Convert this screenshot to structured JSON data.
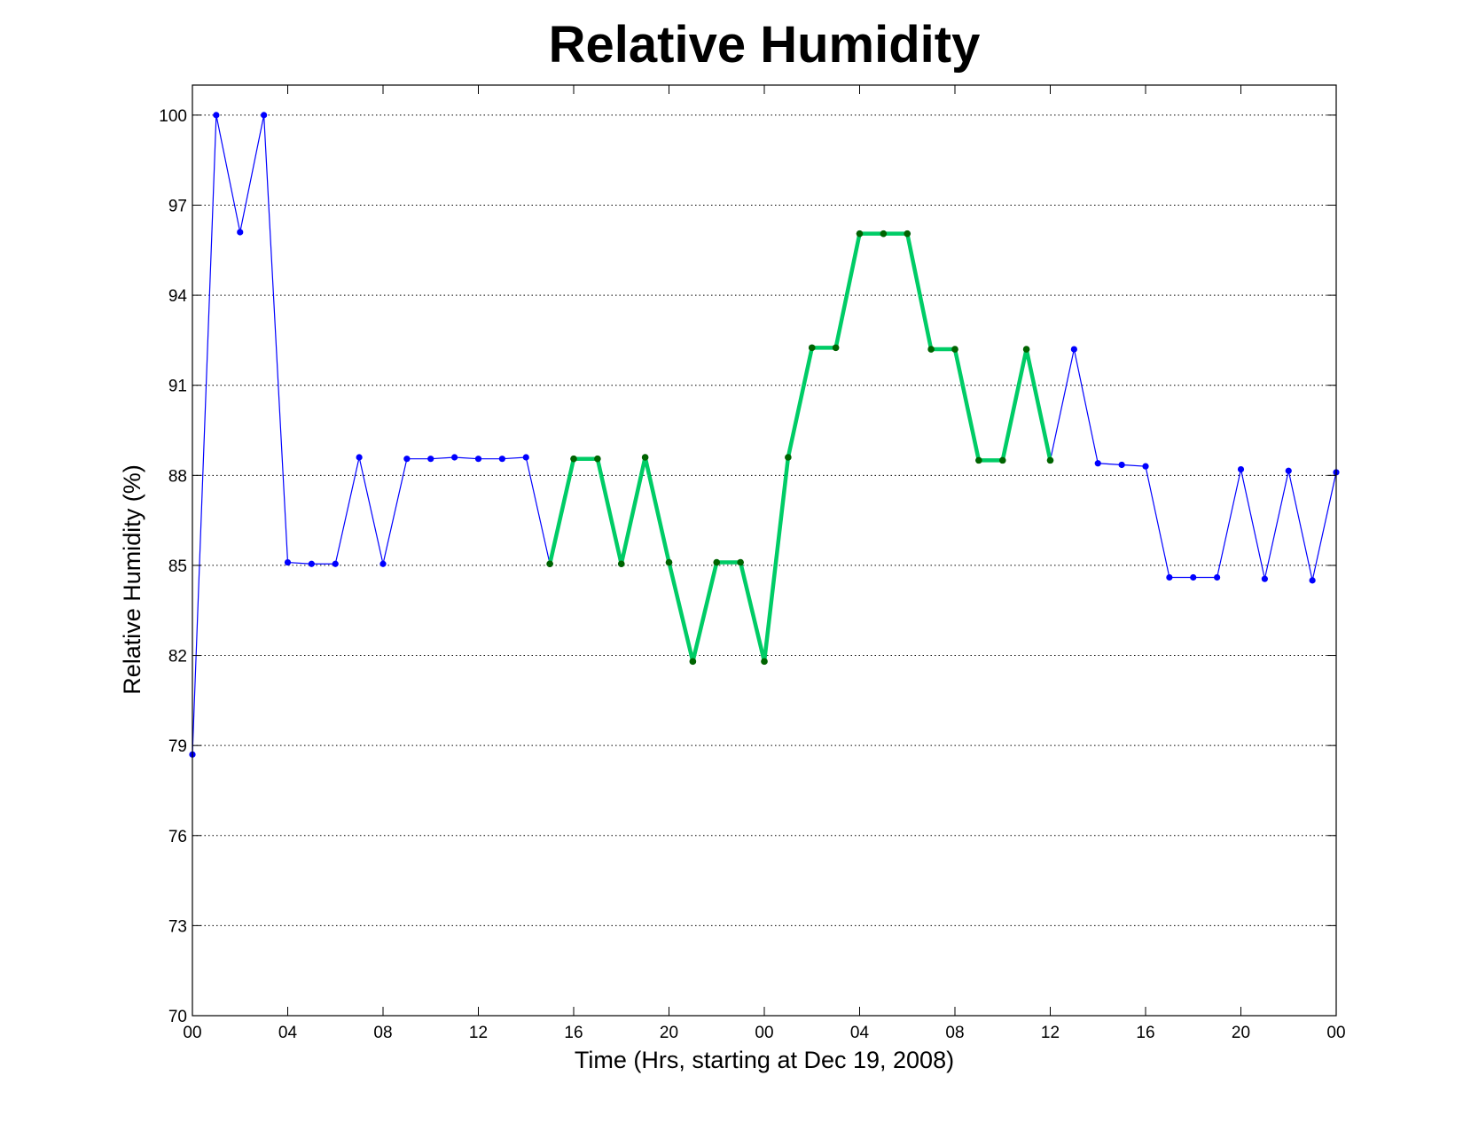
{
  "colors": {
    "base_series": "#0000ff",
    "highlight_series": "#00cc66",
    "highlight_markers": "#006400",
    "grid": "#000000",
    "axes": "#000000",
    "background": "#ffffff"
  },
  "chart_data": {
    "type": "line",
    "title": "Relative Humidity",
    "xlabel": "Time (Hrs, starting at Dec 19, 2008)",
    "ylabel": "Relative Humidity (%)",
    "xlim": [
      0,
      48
    ],
    "ylim": [
      70,
      101
    ],
    "grid": "horizontal dotted",
    "x_ticks": [
      0,
      4,
      8,
      12,
      16,
      20,
      24,
      28,
      32,
      36,
      40,
      44,
      48
    ],
    "x_tick_labels": [
      "00",
      "04",
      "08",
      "12",
      "16",
      "20",
      "00",
      "04",
      "08",
      "12",
      "16",
      "20",
      "00"
    ],
    "y_ticks": [
      70,
      73,
      76,
      79,
      82,
      85,
      88,
      91,
      94,
      97,
      100
    ],
    "y_tick_labels": [
      "70",
      "73",
      "76",
      "79",
      "82",
      "85",
      "88",
      "91",
      "94",
      "97",
      "100"
    ],
    "series": [
      {
        "x": [
          0,
          1,
          2,
          3,
          4,
          5,
          6,
          7,
          8,
          9,
          10,
          11,
          12,
          13,
          14,
          15,
          16,
          17,
          18,
          19,
          20,
          21,
          22,
          23,
          24,
          25,
          26,
          27,
          28,
          29,
          30,
          31,
          32,
          33,
          34,
          35,
          36,
          37,
          38,
          39,
          40,
          41,
          42,
          43,
          44,
          45,
          46,
          47,
          48
        ],
        "values": [
          78.7,
          100,
          96.1,
          100,
          85.1,
          85.05,
          85.05,
          88.6,
          85.05,
          88.55,
          88.55,
          88.6,
          88.55,
          88.55,
          88.6,
          85.05,
          88.55,
          88.55,
          85.05,
          88.6,
          85.1,
          81.8,
          85.1,
          85.1,
          81.8,
          88.6,
          92.25,
          92.25,
          96.05,
          96.05,
          96.05,
          92.2,
          92.2,
          88.5,
          88.5,
          92.2,
          88.5,
          92.2,
          88.4,
          88.35,
          88.3,
          84.6,
          84.6,
          84.6,
          88.2,
          84.55,
          88.15,
          84.5,
          88.1
        ],
        "style": "thin blue line with circle markers"
      },
      {
        "x": [
          15,
          16,
          17,
          18,
          19,
          20,
          21,
          22,
          23,
          24,
          25,
          26,
          27,
          28,
          29,
          30,
          31,
          32,
          33,
          34,
          35,
          36
        ],
        "values": [
          85.05,
          88.55,
          88.55,
          85.05,
          88.6,
          85.1,
          81.8,
          85.1,
          85.1,
          81.8,
          88.6,
          92.25,
          92.25,
          96.05,
          96.05,
          96.05,
          92.2,
          92.2,
          88.5,
          88.5,
          92.2,
          88.5
        ],
        "style": "thick green line with dark green circle markers"
      }
    ]
  }
}
